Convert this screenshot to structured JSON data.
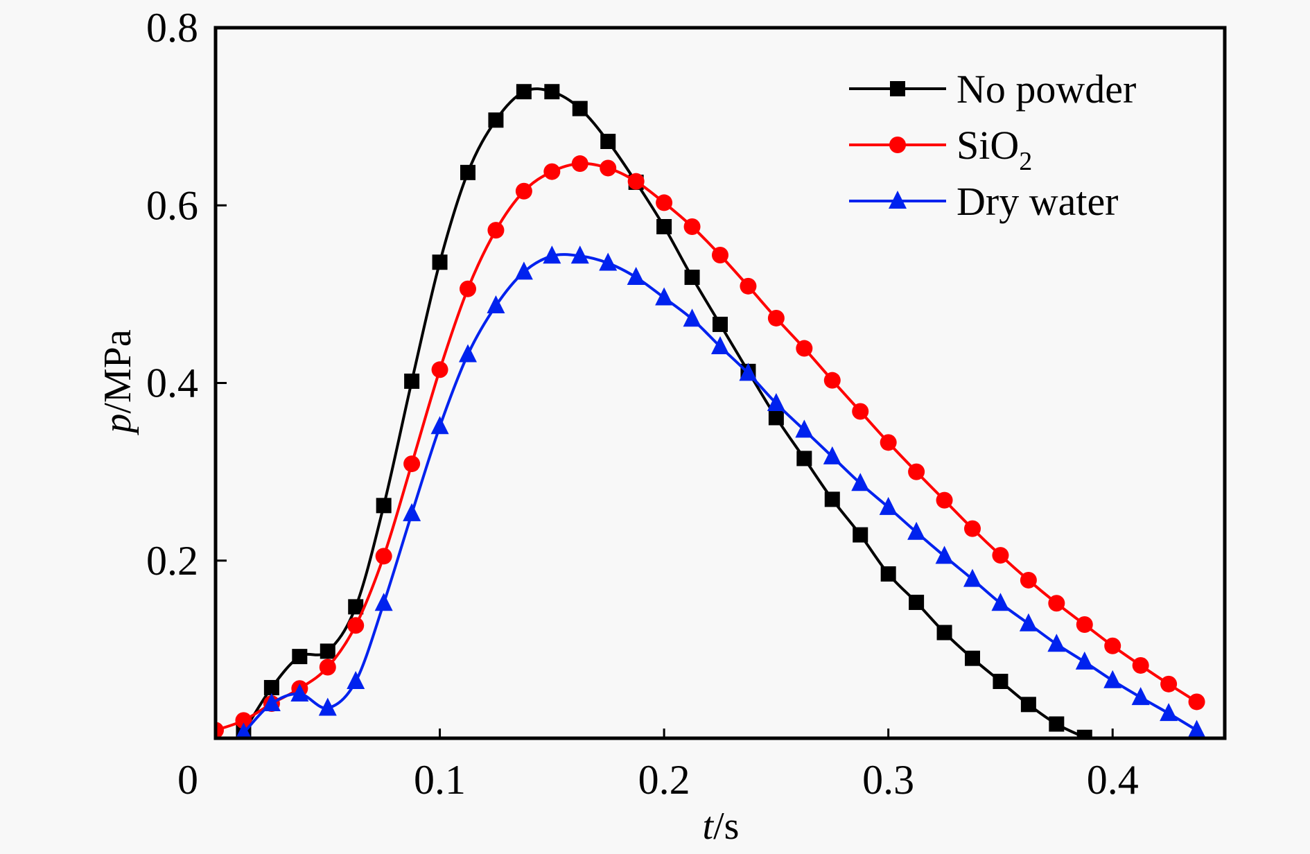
{
  "chart_data": {
    "type": "line",
    "title": "",
    "xlabel_var": "t",
    "xlabel_unit": "/s",
    "ylabel_var": "p",
    "ylabel_unit": "/MPa",
    "xlim": [
      0,
      0.45
    ],
    "ylim": [
      0,
      0.8
    ],
    "grid": false,
    "legend_position": "top-right",
    "x_ticks": [
      0,
      0.1,
      0.2,
      0.3,
      0.4
    ],
    "x_tick_labels": [
      "0",
      "0.1",
      "0.2",
      "0.3",
      "0.4"
    ],
    "y_ticks": [
      0.2,
      0.4,
      0.6,
      0.8
    ],
    "y_tick_labels": [
      "0.2",
      "0.4",
      "0.6",
      "0.8"
    ],
    "series": [
      {
        "name": "No powder",
        "legend_main": "No powder",
        "legend_sub": "",
        "color": "#000000",
        "marker": "square",
        "x": [
          0.0125,
          0.025,
          0.0375,
          0.05,
          0.0625,
          0.075,
          0.0875,
          0.1,
          0.1125,
          0.125,
          0.1375,
          0.15,
          0.1625,
          0.175,
          0.1875,
          0.2,
          0.2125,
          0.225,
          0.2375,
          0.25,
          0.2625,
          0.275,
          0.2875,
          0.3,
          0.3125,
          0.325,
          0.3375,
          0.35,
          0.3625,
          0.375,
          0.3875
        ],
        "y": [
          0.007,
          0.057,
          0.092,
          0.098,
          0.148,
          0.262,
          0.402,
          0.536,
          0.637,
          0.696,
          0.728,
          0.728,
          0.709,
          0.672,
          0.626,
          0.576,
          0.519,
          0.466,
          0.413,
          0.361,
          0.315,
          0.269,
          0.229,
          0.185,
          0.153,
          0.119,
          0.09,
          0.064,
          0.038,
          0.016,
          0.001
        ]
      },
      {
        "name": "SiO2",
        "legend_main": "SiO",
        "legend_sub": "2",
        "color": "#ff0000",
        "marker": "circle",
        "x": [
          0,
          0.0125,
          0.025,
          0.0375,
          0.05,
          0.0625,
          0.075,
          0.0875,
          0.1,
          0.1125,
          0.125,
          0.1375,
          0.15,
          0.1625,
          0.175,
          0.1875,
          0.2,
          0.2125,
          0.225,
          0.2375,
          0.25,
          0.2625,
          0.275,
          0.2875,
          0.3,
          0.3125,
          0.325,
          0.3375,
          0.35,
          0.3625,
          0.375,
          0.3875,
          0.4,
          0.4125,
          0.425,
          0.4375
        ],
        "y": [
          0.009,
          0.02,
          0.039,
          0.056,
          0.08,
          0.127,
          0.205,
          0.309,
          0.415,
          0.506,
          0.572,
          0.616,
          0.638,
          0.647,
          0.642,
          0.627,
          0.603,
          0.576,
          0.544,
          0.509,
          0.473,
          0.439,
          0.403,
          0.368,
          0.333,
          0.3,
          0.268,
          0.236,
          0.206,
          0.178,
          0.152,
          0.128,
          0.104,
          0.082,
          0.061,
          0.041
        ]
      },
      {
        "name": "Dry water",
        "legend_main": "Dry water",
        "legend_sub": "",
        "color": "#0022ee",
        "marker": "triangle",
        "x": [
          0.0125,
          0.025,
          0.0375,
          0.05,
          0.0625,
          0.075,
          0.0875,
          0.1,
          0.1125,
          0.125,
          0.1375,
          0.15,
          0.1625,
          0.175,
          0.1875,
          0.2,
          0.2125,
          0.225,
          0.2375,
          0.25,
          0.2625,
          0.275,
          0.2875,
          0.3,
          0.3125,
          0.325,
          0.3375,
          0.35,
          0.3625,
          0.375,
          0.3875,
          0.4,
          0.4125,
          0.425,
          0.4375
        ],
        "y": [
          0.006,
          0.039,
          0.05,
          0.034,
          0.064,
          0.152,
          0.253,
          0.351,
          0.432,
          0.487,
          0.525,
          0.543,
          0.543,
          0.535,
          0.519,
          0.496,
          0.472,
          0.441,
          0.411,
          0.377,
          0.347,
          0.317,
          0.287,
          0.26,
          0.232,
          0.205,
          0.179,
          0.152,
          0.129,
          0.106,
          0.086,
          0.065,
          0.046,
          0.028,
          0.009
        ]
      }
    ]
  }
}
